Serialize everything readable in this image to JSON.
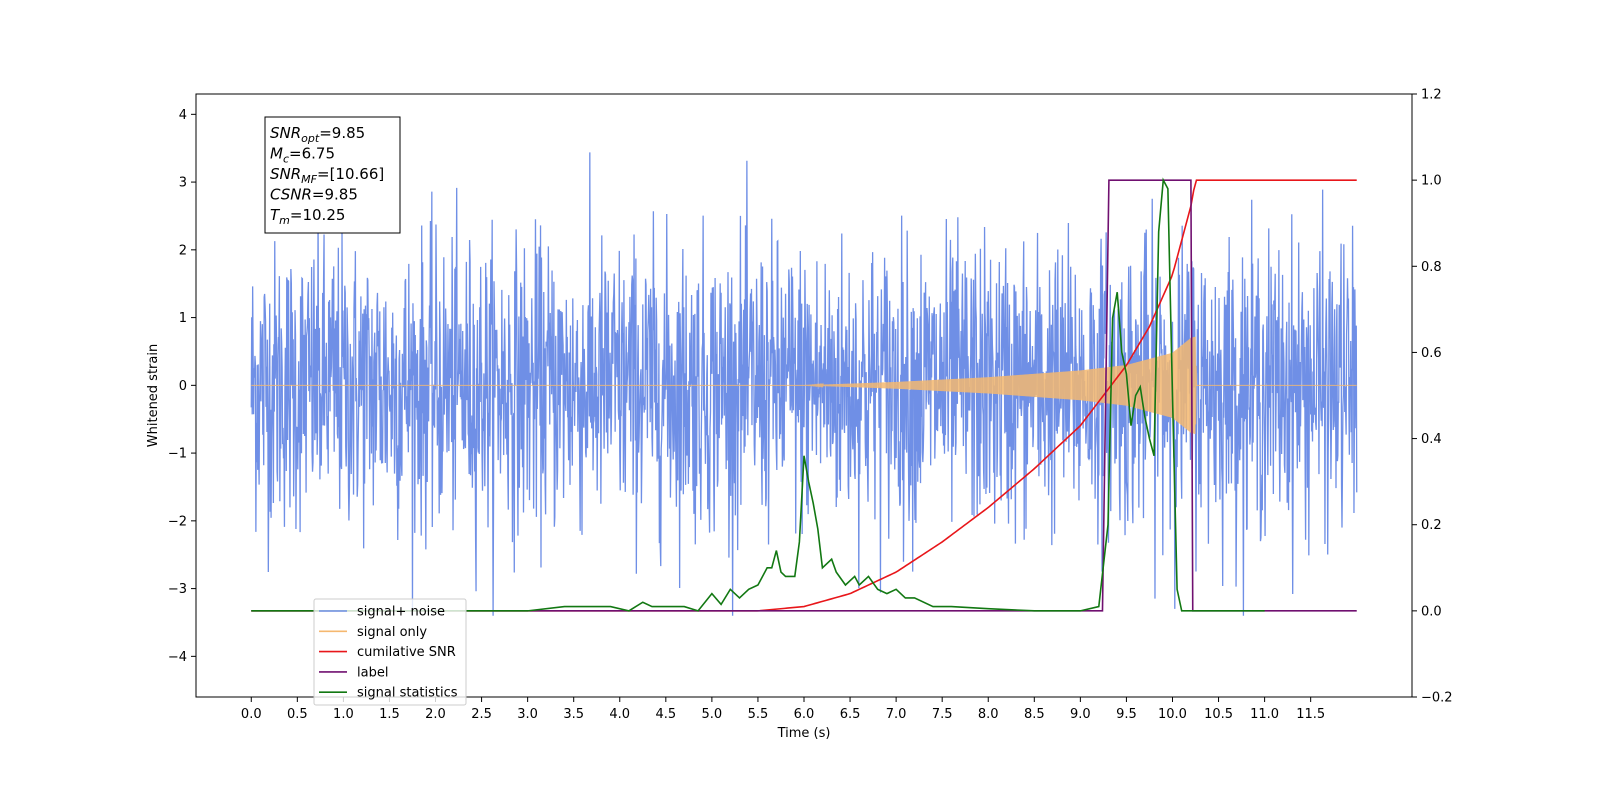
{
  "chart_data": {
    "type": "line",
    "xlabel": "Time (s)",
    "ylabel": "Whitened strain",
    "xlim": [
      -0.6,
      12.6
    ],
    "ylim_left": [
      -4.6,
      4.3
    ],
    "ylim_right": [
      -0.2,
      1.2
    ],
    "x_ticks": [
      0.0,
      0.5,
      1.0,
      1.5,
      2.0,
      2.5,
      3.0,
      3.5,
      4.0,
      4.5,
      5.0,
      5.5,
      6.0,
      6.5,
      7.0,
      7.5,
      8.0,
      8.5,
      9.0,
      9.5,
      10.0,
      10.5,
      11.0,
      11.5
    ],
    "x_tick_labels": [
      "0.0",
      "0.5",
      "1.0",
      "1.5",
      "2.0",
      "2.5",
      "3.0",
      "3.5",
      "4.0",
      "4.5",
      "5.0",
      "5.5",
      "6.0",
      "6.5",
      "7.0",
      "7.5",
      "8.0",
      "8.5",
      "9.0",
      "9.5",
      "10.0",
      "10.5",
      "11.0",
      "11.5"
    ],
    "y_left_ticks": [
      4,
      3,
      2,
      1,
      0,
      -1,
      -2,
      -3,
      -4
    ],
    "y_left_tick_labels": [
      "4",
      "3",
      "2",
      "1",
      "0",
      "−1",
      "−2",
      "−3",
      "−4"
    ],
    "y_right_ticks": [
      1.2,
      1.0,
      0.8,
      0.6,
      0.4,
      0.2,
      0.0,
      -0.2
    ],
    "y_right_tick_labels": [
      "1.2",
      "1.0",
      "0.8",
      "0.6",
      "0.4",
      "0.2",
      "0.0",
      "−0.2"
    ],
    "grid": false,
    "legend_position": "lower-left",
    "annotation": {
      "lines": [
        {
          "sym": "SNR",
          "sub": "opt",
          "val": "=9.85"
        },
        {
          "sym": "M",
          "sub": "c",
          "val": "=6.75"
        },
        {
          "sym": "SNR",
          "sub": "MF",
          "val": "=[10.66]"
        },
        {
          "sym": "CSNR",
          "sub": "",
          "val": "=9.85"
        },
        {
          "sym": "T",
          "sub": "m",
          "val": "=10.25"
        }
      ]
    },
    "series": [
      {
        "name": "signal+ noise",
        "axis": "left",
        "color": "#6f8fe6",
        "noise_sigma": 1.0,
        "x_range": [
          0.0,
          12.0
        ]
      },
      {
        "name": "signal only",
        "axis": "left",
        "color": "#f5b870",
        "envelope": {
          "x": [
            0.0,
            6.0,
            7.0,
            8.0,
            9.0,
            9.5,
            10.0,
            10.2,
            10.25,
            10.26,
            12.0
          ],
          "y": [
            0.0,
            0.0,
            0.05,
            0.12,
            0.22,
            0.3,
            0.48,
            0.7,
            0.72,
            0.0,
            0.0
          ]
        }
      },
      {
        "name": "cumilative SNR",
        "axis": "right",
        "color": "#e8161a",
        "x": [
          0.0,
          5.5,
          6.0,
          6.5,
          7.0,
          7.5,
          8.0,
          8.5,
          9.0,
          9.5,
          9.75,
          10.0,
          10.1,
          10.2,
          10.25,
          12.0
        ],
        "values": [
          0.0,
          0.0,
          0.01,
          0.04,
          0.09,
          0.16,
          0.24,
          0.33,
          0.43,
          0.57,
          0.66,
          0.78,
          0.86,
          0.94,
          1.0,
          1.0
        ]
      },
      {
        "name": "label",
        "axis": "right",
        "color": "#701070",
        "x": [
          0.0,
          9.24,
          9.31,
          10.2,
          10.22,
          12.0
        ],
        "values": [
          0.0,
          0.0,
          1.0,
          1.0,
          0.0,
          0.0
        ]
      },
      {
        "name": "signal statistics",
        "axis": "right",
        "color": "#127812",
        "x": [
          0.0,
          3.0,
          3.4,
          3.6,
          3.9,
          4.1,
          4.25,
          4.35,
          4.5,
          4.7,
          4.85,
          5.0,
          5.1,
          5.2,
          5.3,
          5.4,
          5.5,
          5.6,
          5.65,
          5.7,
          5.75,
          5.8,
          5.9,
          5.95,
          6.0,
          6.05,
          6.1,
          6.15,
          6.2,
          6.3,
          6.35,
          6.45,
          6.55,
          6.6,
          6.7,
          6.8,
          6.9,
          7.0,
          7.1,
          7.2,
          7.4,
          7.6,
          8.0,
          8.5,
          9.0,
          9.2,
          9.3,
          9.35,
          9.4,
          9.45,
          9.5,
          9.55,
          9.6,
          9.65,
          9.7,
          9.75,
          9.8,
          9.85,
          9.9,
          9.95,
          10.0,
          10.05,
          10.1,
          10.15,
          10.2,
          10.3,
          11.0
        ],
        "values": [
          0.0,
          0.0,
          0.01,
          0.01,
          0.01,
          0.0,
          0.02,
          0.01,
          0.01,
          0.01,
          0.0,
          0.04,
          0.015,
          0.05,
          0.03,
          0.05,
          0.06,
          0.1,
          0.1,
          0.14,
          0.09,
          0.08,
          0.08,
          0.16,
          0.36,
          0.3,
          0.25,
          0.19,
          0.1,
          0.12,
          0.09,
          0.06,
          0.08,
          0.06,
          0.08,
          0.05,
          0.04,
          0.05,
          0.03,
          0.03,
          0.01,
          0.01,
          0.005,
          0.0,
          0.0,
          0.01,
          0.2,
          0.68,
          0.74,
          0.6,
          0.55,
          0.43,
          0.5,
          0.52,
          0.45,
          0.4,
          0.36,
          0.88,
          1.0,
          0.98,
          0.5,
          0.05,
          0.0,
          0.0,
          0.0,
          0.0,
          0.0
        ]
      }
    ]
  }
}
